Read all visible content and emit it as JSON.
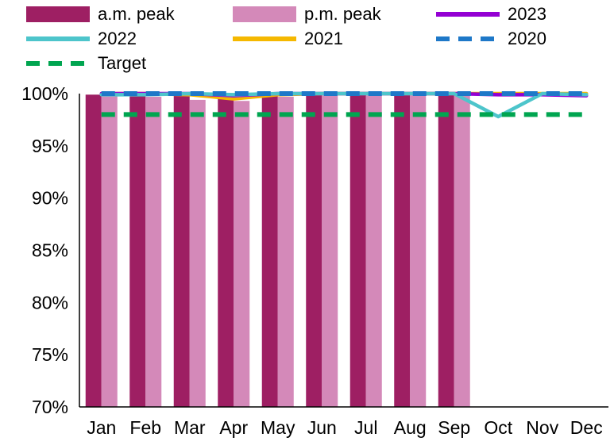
{
  "chart_data": {
    "type": "bar",
    "title": "",
    "xlabel": "",
    "ylabel": "",
    "categories": [
      "Jan",
      "Feb",
      "Mar",
      "Apr",
      "May",
      "Jun",
      "Jul",
      "Aug",
      "Sep",
      "Oct",
      "Nov",
      "Dec"
    ],
    "ylim": [
      70,
      100
    ],
    "yticks": [
      70,
      75,
      80,
      85,
      90,
      95,
      100
    ],
    "ytick_suffix": "%",
    "grid": false,
    "legend_position": "top",
    "bar_series": [
      {
        "name": "a.m. peak",
        "color": "#9E1F63",
        "values": [
          99.9,
          99.8,
          99.9,
          99.6,
          99.8,
          99.9,
          99.9,
          99.9,
          99.9,
          null,
          null,
          null
        ]
      },
      {
        "name": "p.m. peak",
        "color": "#D489B9",
        "values": [
          99.8,
          99.7,
          99.4,
          99.3,
          99.7,
          99.8,
          99.8,
          99.8,
          99.9,
          null,
          null,
          null
        ]
      }
    ],
    "line_series": [
      {
        "name": "2023",
        "color": "#9400D3",
        "dash": false,
        "values": [
          100,
          100,
          100,
          99.8,
          100,
          100,
          100,
          100,
          100,
          99.9,
          99.9,
          99.8
        ]
      },
      {
        "name": "2022",
        "color": "#4DC5CB",
        "dash": false,
        "values": [
          99.9,
          99.9,
          100,
          99.9,
          100,
          100,
          100,
          100,
          100,
          97.8,
          100,
          99.9
        ]
      },
      {
        "name": "2021",
        "color": "#F5B800",
        "dash": false,
        "values": [
          100,
          100,
          99.9,
          99.5,
          99.9,
          100,
          100,
          100,
          100,
          100,
          100,
          100
        ]
      },
      {
        "name": "2020",
        "color": "#1E78C8",
        "dash": true,
        "values": [
          100,
          100,
          100,
          100,
          100,
          100,
          100,
          100,
          100,
          100,
          100,
          100
        ]
      },
      {
        "name": "Target",
        "color": "#00A550",
        "dash": true,
        "values": [
          98,
          98,
          98,
          98,
          98,
          98,
          98,
          98,
          98,
          98,
          98,
          98
        ]
      }
    ],
    "draw_order": [
      2,
      0,
      1,
      3,
      4
    ]
  }
}
